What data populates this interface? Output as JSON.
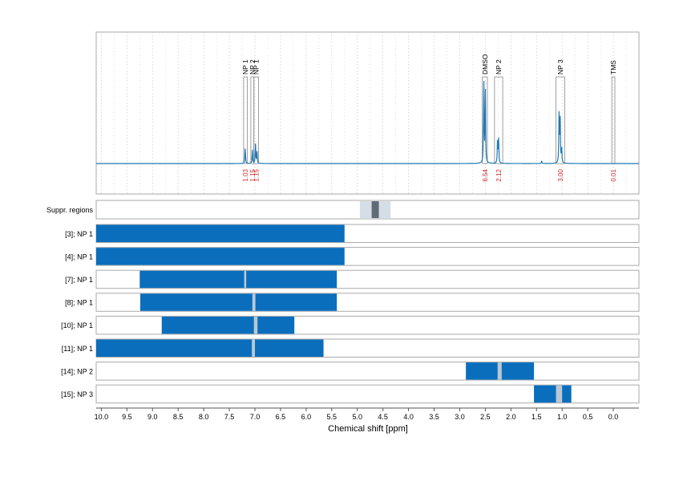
{
  "chart_data": {
    "type": "nmr-spectrum-with-region-map",
    "xlabel": "Chemical shift [ppm]",
    "x_range": [
      10.1,
      -0.5
    ],
    "x_reversed": true,
    "x_ticks": [
      "10.0",
      "9.5",
      "9.0",
      "8.5",
      "8.0",
      "7.5",
      "7.0",
      "6.5",
      "6.0",
      "5.5",
      "5.0",
      "4.5",
      "4.0",
      "3.5",
      "3.0",
      "2.5",
      "2.0",
      "1.5",
      "1.0",
      "0.5",
      "0.0"
    ],
    "grid": true,
    "colors": {
      "spectrum": "#1f78b4",
      "region_fill": "#0a6ebd",
      "integral_label": "#d62728",
      "overlap_band": "#b9c8d4",
      "suppression_light": "#d5dee6",
      "suppression_dark": "#5f6b75",
      "frame": "#aaaaaa",
      "grid": "#cccccc"
    },
    "peak_annotations": [
      {
        "label": "NP 1",
        "region": [
          7.22,
          7.15
        ],
        "integral": "1.03"
      },
      {
        "label": "NP 2",
        "region": [
          7.08,
          7.02
        ],
        "integral": "1.15"
      },
      {
        "label": "NP 1",
        "region": [
          7.02,
          6.93
        ],
        "integral": "1.15"
      },
      {
        "label": "DMSO",
        "region": [
          2.56,
          2.46
        ],
        "integral": "6.54"
      },
      {
        "label": "NP 2",
        "region": [
          2.32,
          2.16
        ],
        "integral": "2.12"
      },
      {
        "label": "NP 3",
        "region": [
          1.12,
          0.95
        ],
        "integral": "3.00"
      },
      {
        "label": "TMS",
        "region": [
          0.03,
          -0.03
        ],
        "integral": "0.01"
      }
    ],
    "spectrum_peaks": [
      {
        "ppm": 7.19,
        "height": 0.2
      },
      {
        "ppm": 7.05,
        "height": 0.16
      },
      {
        "ppm": 6.99,
        "height": 0.24
      },
      {
        "ppm": 6.96,
        "height": 0.15
      },
      {
        "ppm": 2.53,
        "height": 0.95
      },
      {
        "ppm": 2.5,
        "height": 0.88
      },
      {
        "ppm": 2.26,
        "height": 0.33
      },
      {
        "ppm": 2.24,
        "height": 0.27
      },
      {
        "ppm": 1.4,
        "height": 0.03
      },
      {
        "ppm": 1.06,
        "height": 0.54
      },
      {
        "ppm": 1.04,
        "height": 0.62
      },
      {
        "ppm": 1.01,
        "height": 0.2
      }
    ],
    "suppression": {
      "label": "Suppr. regions",
      "outer": [
        4.95,
        4.35
      ],
      "inner": [
        4.72,
        4.58
      ]
    },
    "rows": [
      {
        "label": "[3]; NP 1",
        "segments": [
          [
            10.1,
            5.25
          ]
        ],
        "overlaps": []
      },
      {
        "label": "[4]; NP 1",
        "segments": [
          [
            10.1,
            5.25
          ]
        ],
        "overlaps": []
      },
      {
        "label": "[7]; NP 1",
        "segments": [
          [
            9.25,
            5.4
          ]
        ],
        "overlaps": [
          [
            7.21,
            7.17
          ]
        ]
      },
      {
        "label": "[8]; NP 1",
        "segments": [
          [
            9.24,
            5.4
          ]
        ],
        "overlaps": [
          [
            7.05,
            6.99
          ]
        ]
      },
      {
        "label": "[10]; NP 1",
        "segments": [
          [
            8.82,
            6.23
          ]
        ],
        "overlaps": [
          [
            7.02,
            6.95
          ]
        ]
      },
      {
        "label": "[11]; NP 1",
        "segments": [
          [
            10.1,
            5.66
          ]
        ],
        "overlaps": [
          [
            7.06,
            7.0
          ]
        ]
      },
      {
        "label": "[14]; NP 2",
        "segments": [
          [
            2.88,
            1.55
          ]
        ],
        "overlaps": [
          [
            2.26,
            2.18
          ]
        ]
      },
      {
        "label": "[15]; NP 3",
        "segments": [
          [
            1.55,
            0.82
          ]
        ],
        "overlaps": [
          [
            1.12,
            1.0
          ]
        ]
      }
    ]
  }
}
